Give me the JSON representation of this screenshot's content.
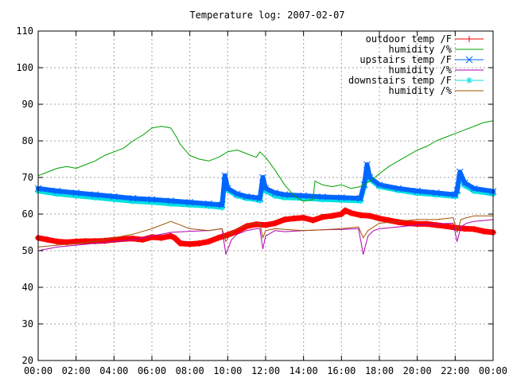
{
  "chart_data": {
    "type": "line",
    "title": "Temperature log: 2007-02-07",
    "xlabel": "",
    "ylabel": "",
    "xlim": [
      0,
      24
    ],
    "ylim": [
      20,
      110
    ],
    "x_ticks": [
      {
        "value": 0,
        "label": "00:00"
      },
      {
        "value": 2,
        "label": "02:00"
      },
      {
        "value": 4,
        "label": "04:00"
      },
      {
        "value": 6,
        "label": "06:00"
      },
      {
        "value": 8,
        "label": "08:00"
      },
      {
        "value": 10,
        "label": "10:00"
      },
      {
        "value": 12,
        "label": "12:00"
      },
      {
        "value": 14,
        "label": "14:00"
      },
      {
        "value": 16,
        "label": "16:00"
      },
      {
        "value": 18,
        "label": "18:00"
      },
      {
        "value": 20,
        "label": "20:00"
      },
      {
        "value": 22,
        "label": "22:00"
      },
      {
        "value": 24,
        "label": "00:00"
      }
    ],
    "y_ticks": [
      20,
      30,
      40,
      50,
      60,
      70,
      80,
      90,
      100,
      110
    ],
    "grid": true,
    "legend_position": "top-right",
    "series": [
      {
        "name": "outdoor temp /F",
        "color": "#ff0000",
        "marker": "plus",
        "style": "thick",
        "x": [
          0,
          0.5,
          1,
          1.5,
          2,
          2.5,
          3,
          3.5,
          4,
          4.5,
          5,
          5.5,
          6,
          6.5,
          7,
          7.2,
          7.5,
          8,
          8.5,
          9,
          9.5,
          10,
          10.5,
          11,
          11.5,
          12,
          12.5,
          13,
          13.5,
          14,
          14.5,
          15,
          15.5,
          16,
          16.2,
          16.5,
          17,
          17.5,
          18,
          18.5,
          19,
          19.5,
          20,
          20.5,
          21,
          21.5,
          22,
          22.5,
          23,
          23.5,
          24
        ],
        "y": [
          53.5,
          53,
          52.5,
          52.3,
          52.5,
          52.6,
          52.6,
          52.7,
          53,
          53.2,
          53.3,
          53,
          53.7,
          53.5,
          54,
          53.5,
          52,
          51.8,
          52,
          52.5,
          53.5,
          54.3,
          55.3,
          56.7,
          57.2,
          57,
          57.5,
          58.5,
          58.8,
          59,
          58.3,
          59.2,
          59.5,
          60,
          61,
          60.3,
          59.7,
          59.5,
          58.8,
          58.3,
          57.8,
          57.5,
          57.3,
          57.3,
          57,
          56.7,
          56.3,
          56,
          55.9,
          55.3,
          55
        ]
      },
      {
        "name": "humidity /%",
        "color": "#00a000",
        "marker": "none",
        "style": "thin",
        "x": [
          0,
          0.5,
          1,
          1.5,
          2,
          2.5,
          3,
          3.5,
          4,
          4.5,
          5,
          5.5,
          6,
          6.5,
          7,
          7.3,
          7.5,
          8,
          8.5,
          9,
          9.5,
          10,
          10.5,
          11,
          11.5,
          11.7,
          12,
          12.5,
          13,
          13.5,
          13.8,
          14,
          14.5,
          14.6,
          15,
          15.5,
          16,
          16.5,
          17,
          17.5,
          18,
          18.5,
          19,
          19.5,
          20,
          20.5,
          21,
          21.5,
          22,
          22.5,
          23,
          23.5,
          24
        ],
        "y": [
          70.5,
          71.5,
          72.5,
          73,
          72.5,
          73.5,
          74.5,
          76,
          77,
          78,
          80,
          81.5,
          83.5,
          84,
          83.5,
          81,
          79,
          76,
          75,
          74.5,
          75.5,
          77,
          77.5,
          76.5,
          75.5,
          77,
          75.5,
          72,
          68,
          65,
          64,
          63.5,
          64,
          69,
          68,
          67.5,
          68,
          67,
          67.5,
          69,
          71,
          73,
          74.5,
          76,
          77.5,
          78.5,
          80,
          81,
          82,
          83,
          84,
          85,
          85.5
        ]
      },
      {
        "name": "upstairs temp /F",
        "color": "#0066ff",
        "marker": "x",
        "style": "thick",
        "x": [
          0,
          1,
          2,
          3,
          4,
          5,
          6,
          7,
          8,
          9,
          9.7,
          9.85,
          10,
          10.5,
          11,
          11.5,
          11.7,
          11.85,
          12,
          12.5,
          13,
          14,
          15,
          16,
          17,
          17.2,
          17.35,
          17.5,
          18,
          19,
          20,
          21,
          22,
          22.1,
          22.25,
          22.5,
          23,
          24
        ],
        "y": [
          67,
          66.3,
          65.8,
          65.3,
          64.8,
          64.3,
          64,
          63.6,
          63.2,
          62.8,
          62.5,
          70.5,
          67,
          65.5,
          64.8,
          64.5,
          64.3,
          70,
          67,
          65.8,
          65.3,
          65,
          64.7,
          64.5,
          64.3,
          68,
          73.5,
          70,
          68,
          67,
          66.3,
          65.8,
          65.3,
          66.5,
          71.5,
          68.5,
          67,
          66.2
        ]
      },
      {
        "name": "humidity /%",
        "color": "#b000b0",
        "marker": "none",
        "style": "thin",
        "x": [
          0,
          1,
          2,
          3,
          4,
          5,
          6,
          7,
          8,
          9,
          9.7,
          9.9,
          10.2,
          10.5,
          11,
          11.5,
          11.7,
          11.85,
          12,
          12.5,
          13,
          14,
          15,
          16,
          16.9,
          17.15,
          17.4,
          17.7,
          18,
          19,
          20,
          21,
          21.9,
          22.1,
          22.3,
          22.6,
          23,
          24
        ],
        "y": [
          50,
          51,
          51.5,
          52,
          52.5,
          53,
          54,
          55,
          55.3,
          55.5,
          56,
          49,
          53,
          54.5,
          55.5,
          56,
          56,
          50.5,
          54,
          55.5,
          55.2,
          55.5,
          55.7,
          55.8,
          56,
          49,
          54,
          55.5,
          56,
          56.5,
          57,
          57.3,
          57.5,
          52.5,
          56.5,
          57.5,
          58,
          58.5
        ]
      },
      {
        "name": "downstairs temp /F",
        "color": "#00e0e0",
        "marker": "star",
        "style": "thick",
        "x": [
          0,
          1,
          2,
          3,
          4,
          5,
          6,
          7,
          8,
          9,
          9.7,
          9.85,
          10,
          10.5,
          11,
          11.5,
          11.7,
          11.85,
          12,
          12.5,
          13,
          14,
          15,
          16,
          17,
          17.2,
          17.35,
          17.5,
          18,
          19,
          20,
          21,
          22,
          22.1,
          22.25,
          22.5,
          23,
          24
        ],
        "y": [
          66.3,
          65.5,
          65,
          64.5,
          64,
          63.5,
          63.2,
          62.8,
          62.5,
          62.2,
          61.8,
          69.5,
          66.5,
          65,
          64.3,
          64,
          63.7,
          69.5,
          66.3,
          65,
          64.5,
          64.3,
          64,
          63.8,
          63.6,
          67.5,
          72.5,
          69.5,
          67.5,
          66.5,
          65.7,
          65.3,
          64.8,
          66,
          70.5,
          67.8,
          66.3,
          65.5
        ]
      },
      {
        "name": "humidity /%",
        "color": "#a05000",
        "marker": "none",
        "style": "thin",
        "x": [
          0,
          1,
          2,
          3,
          4,
          5,
          6,
          7,
          7.5,
          8,
          9,
          9.7,
          9.9,
          10.2,
          10.5,
          11,
          11.5,
          11.7,
          11.85,
          12,
          12.5,
          13,
          14,
          15,
          16,
          16.9,
          17.15,
          17.4,
          17.7,
          18,
          19,
          20,
          21,
          21.9,
          22.1,
          22.3,
          22.6,
          23,
          24
        ],
        "y": [
          51,
          51.5,
          52,
          52.5,
          53.5,
          54.5,
          56,
          58,
          57,
          56,
          55.5,
          56,
          52.5,
          55,
          56,
          57,
          57.5,
          57.5,
          53.5,
          55.5,
          56,
          55.8,
          55.5,
          55.7,
          56,
          56.5,
          53.5,
          55.5,
          56.5,
          57.5,
          58,
          58.5,
          58.5,
          59,
          55,
          58.5,
          59,
          59.5,
          59.5
        ]
      }
    ]
  }
}
